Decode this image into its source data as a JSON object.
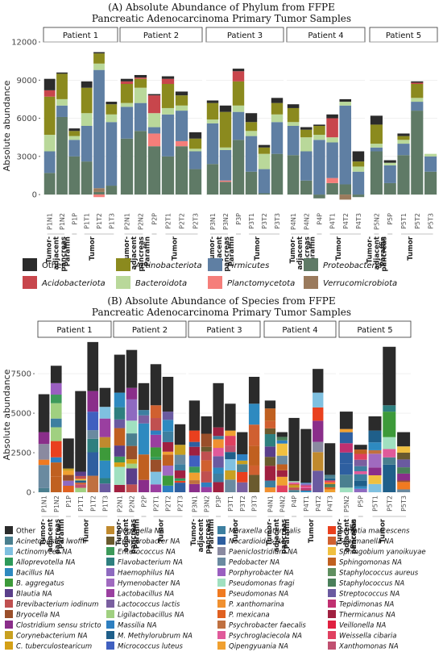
{
  "figure": {
    "panel_a_title_line1": "(A) Absolute Abundance of Phylum from FFPE",
    "panel_a_title_line2": "Pancreatic Adenocarcinoma Primary Tumor Samples",
    "panel_b_title_line1": "(B) Absolute Abundance of Species from FFPE",
    "panel_b_title_line2": "Pancreatic Adenocarcinoma Primary Tumor Samples"
  },
  "colors": {
    "Other": "#2b2b2b",
    "Acidobacteriota": "#c8464c",
    "Actinobacteriota": "#8b8a1e",
    "Bacteroidota": "#b9d89a",
    "Firmicutes": "#5f7fa3",
    "Planctomycetota": "#f57e7a",
    "Proteobacteria": "#5f7a66",
    "Verrucomicrobiota": "#9a7a5c",
    "species": [
      "#2b2b2b",
      "#4a7f8f",
      "#7fc0e0",
      "#5a3f8a",
      "#2e8a7e",
      "#3d9a3a",
      "#c8a020",
      "#d4a017",
      "#9a4f2a",
      "#8e6ac0",
      "#c05050",
      "#f07a20",
      "#7a3fa0",
      "#c0c0c0",
      "#2ea0c0",
      "#e9401e",
      "#9ac04a",
      "#2e7f50",
      "#e05a9a",
      "#6a9ac0",
      "#40a060",
      "#f0a030",
      "#1f5f8a",
      "#a0d080",
      "#e0e020",
      "#c03070",
      "#4060c0",
      "#80c0a0",
      "#d08040",
      "#5f8f5f"
    ]
  },
  "chart_data": [
    {
      "type": "bar",
      "title": "(A) Absolute Abundance of Phylum from FFPE Pancreatic Adenocarcinoma Primary Tumor Samples",
      "ylabel": "Absolute abundance",
      "ylim": [
        -1200,
        12000
      ],
      "yticks": [
        0,
        3000,
        6000,
        9000,
        12000
      ],
      "stack_order": [
        "Proteobacteria",
        "Verrucomicrobiota",
        "Planctomycetota",
        "Firmicutes",
        "Bacteroidota",
        "Actinobacteriota",
        "Acidobacteriota",
        "Other"
      ],
      "legend": [
        "Other",
        "Acidobacteriota",
        "Actinobacteriota",
        "Bacteroidota",
        "Firmicutes",
        "Planctomycetota",
        "Proteobacteria",
        "Verrucomicrobiota"
      ],
      "panels": [
        {
          "label": "Patient 1",
          "samples": [
            {
              "id": "P1N1",
              "group": "Tumor-adjacent pancreas",
              "Proteobacteria": 1700,
              "Firmicutes": 1700,
              "Bacteroidota": 1300,
              "Actinobacteriota": 3000,
              "Acidobacteriota": 500,
              "Other": 900
            },
            {
              "id": "P1N2",
              "group": "Tumor-adjacent pancreas",
              "Proteobacteria": 6100,
              "Firmicutes": 900,
              "Bacteroidota": 500,
              "Actinobacteriota": 2000,
              "Other": 100
            },
            {
              "id": "P1P",
              "group": "Paraffin",
              "Proteobacteria": 3000,
              "Firmicutes": 1300,
              "Bacteroidota": 300,
              "Actinobacteriota": 400,
              "Other": 200
            },
            {
              "id": "P1T1",
              "group": "Tumor",
              "Proteobacteria": 2600,
              "Firmicutes": 2800,
              "Bacteroidota": 1000,
              "Actinobacteriota": 2000,
              "Other": 500
            },
            {
              "id": "P1T2",
              "group": "Tumor",
              "Proteobacteria": 200,
              "Verrucomicrobiota": 300,
              "Planctomycetota": -200,
              "Firmicutes": 9300,
              "Bacteroidota": 500,
              "Actinobacteriota": 800,
              "Other": 100
            },
            {
              "id": "P1T3",
              "group": "Tumor",
              "Proteobacteria": 700,
              "Firmicutes": 5000,
              "Bacteroidota": 600,
              "Actinobacteriota": 800,
              "Other": 200
            }
          ]
        },
        {
          "label": "Patient 2",
          "samples": [
            {
              "id": "P2N1",
              "group": "Tumor-adjacent pancreas",
              "Proteobacteria": 4400,
              "Firmicutes": 2500,
              "Bacteroidota": 300,
              "Actinobacteriota": 1500,
              "Acidobacteriota": 200,
              "Other": 200
            },
            {
              "id": "P2N2",
              "group": "Tumor-adjacent pancreas",
              "Proteobacteria": 5000,
              "Firmicutes": 2200,
              "Bacteroidota": 1200,
              "Actinobacteriota": 700,
              "Acidobacteriota": 100,
              "Other": 200
            },
            {
              "id": "P2P",
              "group": "Paraffin",
              "Proteobacteria": 3800,
              "Planctomycetota": 1000,
              "Firmicutes": 500,
              "Bacteroidota": 1100,
              "Acidobacteriota": 1400,
              "Other": 100
            },
            {
              "id": "P2T1",
              "group": "Tumor",
              "Proteobacteria": 3000,
              "Firmicutes": 3300,
              "Bacteroidota": 500,
              "Actinobacteriota": 1900,
              "Acidobacteriota": 400,
              "Other": 200
            },
            {
              "id": "P2T2",
              "group": "Tumor",
              "Proteobacteria": 3800,
              "Planctomycetota": 400,
              "Firmicutes": 2400,
              "Bacteroidota": 400,
              "Actinobacteriota": 800,
              "Other": 300
            },
            {
              "id": "P2T3",
              "group": "Tumor",
              "Proteobacteria": 2000,
              "Firmicutes": 1400,
              "Bacteroidota": 200,
              "Actinobacteriota": 800,
              "Other": 500
            }
          ]
        },
        {
          "label": "Patient 3",
          "samples": [
            {
              "id": "P3N1",
              "group": "Tumor-adjacent pancreas",
              "Proteobacteria": 2400,
              "Firmicutes": 3200,
              "Bacteroidota": 300,
              "Actinobacteriota": 1300,
              "Other": 200
            },
            {
              "id": "P3N2",
              "group": "Tumor-adjacent pancreas",
              "Proteobacteria": 1000,
              "Planctomycetota": 100,
              "Firmicutes": 2400,
              "Bacteroidota": 200,
              "Actinobacteriota": 2800,
              "Other": 500
            },
            {
              "id": "P3P",
              "group": "Paraffin",
              "Proteobacteria": 4300,
              "Firmicutes": 2200,
              "Bacteroidota": 500,
              "Actinobacteriota": 1900,
              "Acidobacteriota": 800,
              "Other": 200
            },
            {
              "id": "P3T1",
              "group": "Tumor",
              "Proteobacteria": 1800,
              "Firmicutes": 2800,
              "Bacteroidota": 400,
              "Actinobacteriota": 700,
              "Other": 700
            },
            {
              "id": "P3T2",
              "group": "Tumor",
              "Proteobacteria": 100,
              "Firmicutes": 1900,
              "Bacteroidota": 1200,
              "Actinobacteriota": 500,
              "Other": 200
            },
            {
              "id": "P3T3",
              "group": "Tumor",
              "Proteobacteria": 3200,
              "Firmicutes": 2500,
              "Bacteroidota": 600,
              "Actinobacteriota": 900,
              "Other": 400
            }
          ]
        },
        {
          "label": "Patient 4",
          "samples": [
            {
              "id": "P4N1",
              "group": "Tumor-adjacent pancreas",
              "Proteobacteria": 3100,
              "Firmicutes": 2300,
              "Bacteroidota": 300,
              "Actinobacteriota": 1100,
              "Other": 300
            },
            {
              "id": "P4N2",
              "group": "Tumor-adjacent pancreas",
              "Proteobacteria": 1100,
              "Firmicutes": 2300,
              "Bacteroidota": 1100,
              "Actinobacteriota": 600,
              "Other": 200
            },
            {
              "id": "P4P",
              "group": "Paraffin",
              "Proteobacteria": -300,
              "Firmicutes": 4300,
              "Bacteroidota": 400,
              "Actinobacteriota": 700,
              "Other": 100
            },
            {
              "id": "P4T1",
              "group": "Tumor",
              "Proteobacteria": 900,
              "Planctomycetota": 400,
              "Firmicutes": 2800,
              "Bacteroidota": 400,
              "Acidobacteriota": 1500,
              "Other": 300
            },
            {
              "id": "P4T2",
              "group": "Tumor",
              "Proteobacteria": 800,
              "Verrucomicrobiota": -400,
              "Firmicutes": 6200,
              "Bacteroidota": 300,
              "Other": 200
            },
            {
              "id": "P4T3",
              "group": "Tumor",
              "Proteobacteria": -200,
              "Firmicutes": 1800,
              "Bacteroidota": 400,
              "Actinobacteriota": 400,
              "Other": 800
            }
          ]
        },
        {
          "label": "Patient 5",
          "samples": [
            {
              "id": "P5N2",
              "group": "Tumor-adjacent pancreas",
              "Proteobacteria": 3400,
              "Firmicutes": 300,
              "Bacteroidota": 300,
              "Actinobacteriota": 1500,
              "Other": 700
            },
            {
              "id": "P5P",
              "group": "Paraffin",
              "Proteobacteria": 900,
              "Firmicutes": 1400,
              "Bacteroidota": 200,
              "Other": 200
            },
            {
              "id": "P5T1",
              "group": "Tumor",
              "Proteobacteria": 3100,
              "Firmicutes": 900,
              "Bacteroidota": 300,
              "Actinobacteriota": 300,
              "Other": 200
            },
            {
              "id": "P5T2",
              "group": "Tumor",
              "Proteobacteria": 6600,
              "Firmicutes": 700,
              "Bacteroidota": 300,
              "Actinobacteriota": 1100,
              "Acidobacteriota": 100,
              "Other": 100
            },
            {
              "id": "P5T3",
              "group": "Tumor",
              "Proteobacteria": 1800,
              "Firmicutes": 1200,
              "Bacteroidota": 200
            }
          ]
        }
      ]
    },
    {
      "type": "bar",
      "title": "(B) Absolute Abundance of Species from FFPE Pancreatic Adenocarcinoma Primary Tumor Samples",
      "ylabel": "Absolute abundance",
      "ylim": [
        0,
        9800
      ],
      "yticks": [
        0,
        2500,
        5000,
        7500
      ],
      "legend": [
        "Other",
        "Acinetobacter lwoffii",
        "Actinomyces NA",
        "Alloprevotella NA",
        "Bacillus NA",
        "B. aggregatus",
        "Blautia NA",
        "Brevibacterium iodinum",
        "Bryocella NA",
        "Clostridium sensu stricto",
        "Corynebacterium NA",
        "C. tuberculostearicum",
        "Duganella NA",
        "Enhydrobacter NA",
        "Enterococcus NA",
        "Flavobacterium NA",
        "Haemophilus NA",
        "Hymenobacter NA",
        "Lactobacillus NA",
        "Lactococcus lactis",
        "Ligilactobacillus NA",
        "Massilia NA",
        "M. Methylorubrum NA",
        "Micrococcus luteus",
        "Moraxella catarrhalis",
        "Nocardioides NA",
        "Paeniclostridium NA",
        "Pedobacter NA",
        "Porphyrobacter NA",
        "Pseudomonas fragi",
        "Pseudomonas NA",
        "P. xanthomarina",
        "P. mexicana",
        "Psychrobacter faecalis",
        "Psychroglaciecola NA",
        "Qipengyuania NA",
        "Serratia marcescens",
        "Skermanella NA",
        "Sphingobium yanoikuyae",
        "Sphingomonas NA",
        "Staphylococcus aureus",
        "Staphylococcus NA",
        "Streptococcus NA",
        "Tepidimonas NA",
        "Thermicanus NA",
        "Veillonella NA",
        "Weissella cibaria",
        "Xanthomonas NA"
      ],
      "legend_colors": [
        "#2b2b2b",
        "#4a7f8f",
        "#7fc0e0",
        "#2e9a5a",
        "#2e8ac0",
        "#3d9a3a",
        "#5a3f8a",
        "#c05050",
        "#9a4f2a",
        "#8a2e8a",
        "#c8a020",
        "#d4a017",
        "#c08a2e",
        "#6a5a2e",
        "#3d9a5a",
        "#2e7f7f",
        "#8e6ac0",
        "#a06ac0",
        "#9a3fa0",
        "#7a5fa0",
        "#a0d080",
        "#2e7fc0",
        "#1f5f8a",
        "#4060c0",
        "#3d7fa0",
        "#2e5fa0",
        "#8a8aa0",
        "#6a8aa0",
        "#9a5fc0",
        "#a0e0c0",
        "#f07a20",
        "#f09030",
        "#e06020",
        "#c07040",
        "#e05a9a",
        "#f0a030",
        "#e9401e",
        "#d06030",
        "#f0c040",
        "#c06020",
        "#5f8f5f",
        "#4a7f5a",
        "#6a5aa0",
        "#c03070",
        "#a02040",
        "#e02040",
        "#e04060",
        "#c05070"
      ],
      "panels": [
        {
          "label": "Patient 1",
          "samples": [
            {
              "id": "P1N1",
              "group": "Tumor-adjacent pancreas",
              "total": 6200,
              "other": 2400
            },
            {
              "id": "P1N2",
              "group": "Tumor-adjacent pancreas",
              "total": 8000,
              "other": 1100
            },
            {
              "id": "P1P",
              "group": "Paraffin",
              "total": 3400,
              "other": 1900
            },
            {
              "id": "P1T1",
              "group": "Tumor",
              "total": 6400,
              "other": 5100
            },
            {
              "id": "P1T2",
              "group": "Tumor",
              "total": 9500,
              "other": 3100
            },
            {
              "id": "P1T3",
              "group": "Tumor",
              "total": 6600,
              "other": 1200
            }
          ]
        },
        {
          "label": "Patient 2",
          "samples": [
            {
              "id": "P2N1",
              "group": "Tumor-adjacent pancreas",
              "total": 8700,
              "other": 2400
            },
            {
              "id": "P2N2",
              "group": "Tumor-adjacent pancreas",
              "total": 9000,
              "other": 2400
            },
            {
              "id": "P2P",
              "group": "Paraffin",
              "total": 6900,
              "other": 1700
            },
            {
              "id": "P2T1",
              "group": "Tumor",
              "total": 8100,
              "other": 2600
            },
            {
              "id": "P2T2",
              "group": "Tumor",
              "total": 7300,
              "other": 2200
            },
            {
              "id": "P2T3",
              "group": "Tumor",
              "total": 4300,
              "other": 1300
            }
          ]
        },
        {
          "label": "Patient 3",
          "samples": [
            {
              "id": "P3N1",
              "group": "Tumor-adjacent pancreas",
              "total": 5800,
              "other": 1900
            },
            {
              "id": "P3N2",
              "group": "Tumor-adjacent pancreas",
              "total": 4800,
              "other": 1100
            },
            {
              "id": "P3P",
              "group": "Paraffin",
              "total": 6900,
              "other": 2800
            },
            {
              "id": "P3T1",
              "group": "Tumor",
              "total": 5600,
              "other": 1700
            },
            {
              "id": "P3T2",
              "group": "Tumor",
              "total": 3800,
              "other": 1400
            },
            {
              "id": "P3T3",
              "group": "Tumor",
              "total": 7300,
              "other": 1700
            }
          ]
        },
        {
          "label": "Patient 4",
          "samples": [
            {
              "id": "P4N1",
              "group": "Tumor-adjacent pancreas",
              "total": 5800,
              "other": 500
            },
            {
              "id": "P4N2",
              "group": "Tumor-adjacent pancreas",
              "total": 3800,
              "other": 300
            },
            {
              "id": "P4P",
              "group": "Paraffin",
              "total": 4700,
              "other": 4000
            },
            {
              "id": "P4T1",
              "group": "Tumor",
              "total": 4000,
              "other": 3400
            },
            {
              "id": "P4T2",
              "group": "Tumor",
              "total": 7800,
              "other": 1500
            },
            {
              "id": "P4T3",
              "group": "Tumor",
              "total": 3100,
              "other": 2000
            }
          ]
        },
        {
          "label": "Patient 5",
          "samples": [
            {
              "id": "P5N2",
              "group": "Tumor-adjacent pancreas",
              "total": 5100,
              "other": 1100
            },
            {
              "id": "P5P",
              "group": "Paraffin",
              "total": 3000,
              "other": 300
            },
            {
              "id": "P5T1",
              "group": "Tumor",
              "total": 4800,
              "other": 900
            },
            {
              "id": "P5T2",
              "group": "Tumor",
              "total": 9200,
              "other": 3700
            },
            {
              "id": "P5T3",
              "group": "Tumor",
              "total": 3800,
              "other": 900
            }
          ]
        }
      ]
    }
  ]
}
